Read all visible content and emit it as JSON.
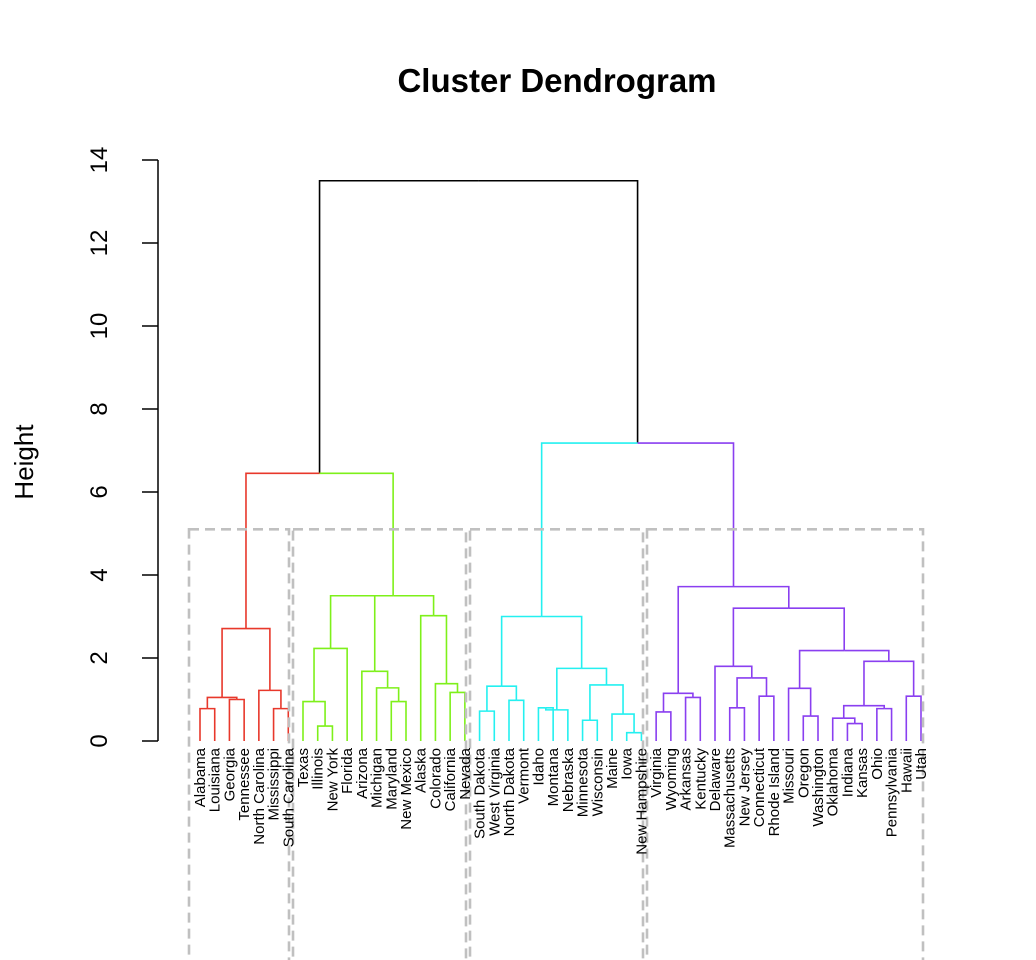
{
  "chart_data": {
    "type": "dendrogram",
    "title": "Cluster Dendrogram",
    "ylabel": "Height",
    "xlabel": "",
    "ylim": [
      0,
      14
    ],
    "yticks": [
      0,
      2,
      4,
      6,
      8,
      10,
      12,
      14
    ],
    "cut_height": 5.1,
    "leaves": [
      "Alabama",
      "Louisiana",
      "Georgia",
      "Tennessee",
      "North Carolina",
      "Mississippi",
      "South Carolina",
      "Texas",
      "Illinois",
      "New York",
      "Florida",
      "Arizona",
      "Michigan",
      "Maryland",
      "New Mexico",
      "Alaska",
      "Colorado",
      "California",
      "Nevada",
      "South Dakota",
      "West Virginia",
      "North Dakota",
      "Vermont",
      "Idaho",
      "Montana",
      "Nebraska",
      "Minnesota",
      "Wisconsin",
      "Maine",
      "Iowa",
      "New Hampshire",
      "Virginia",
      "Wyoming",
      "Arkansas",
      "Kentucky",
      "Delaware",
      "Massachusetts",
      "New Jersey",
      "Connecticut",
      "Rhode Island",
      "Missouri",
      "Oregon",
      "Washington",
      "Oklahoma",
      "Indiana",
      "Kansas",
      "Ohio",
      "Pennsylvania",
      "Hawaii",
      "Utah"
    ],
    "clusters": [
      {
        "name": "cluster-1",
        "first": 0,
        "last": 6,
        "color": "#e8382b"
      },
      {
        "name": "cluster-2",
        "first": 7,
        "last": 18,
        "color": "#7ef01a"
      },
      {
        "name": "cluster-3",
        "first": 19,
        "last": 30,
        "color": "#24f0f0"
      },
      {
        "name": "cluster-4",
        "first": 31,
        "last": 49,
        "color": "#8a3ff0"
      }
    ],
    "tree": [
      [
        [
          [
            [
              0,
              [
                1,
                [
                  2,
                  3,
                  1.0
                ],
                1.05
              ],
              0.78
            ],
            [
              [
                4,
                [
                  5,
                  6,
                  0.78
                ],
                1.22
              ],
              0,
              0
            ],
            2.71
          ],
          0,
          0
        ],
        [
          [
            [
              7,
              [
                8,
                0,
                0
              ],
              0.95
            ],
            [
              9,
              0,
              0
            ],
            2.23
          ],
          0,
          0
        ],
        6.45
      ],
      [
        0,
        0,
        0
      ],
      13.5
    ],
    "merges": [
      {
        "left": "Alabama",
        "right": "Louisiana",
        "height": 0.78
      },
      {
        "left": "Georgia",
        "right": "Tennessee",
        "height": 1.0
      },
      {
        "left": "Alabama+Louisiana",
        "right": "Georgia+Tennessee",
        "height": 1.05
      },
      {
        "left": "Mississippi",
        "right": "South Carolina",
        "height": 0.78
      },
      {
        "left": "North Carolina",
        "right": "Mississippi+South Carolina",
        "height": 1.22
      },
      {
        "left": "cluster-1-left",
        "right": "cluster-1-right",
        "height": 2.71
      },
      {
        "left": "Illinois",
        "right": "New York",
        "height": 0.36
      },
      {
        "left": "Texas",
        "right": "Illinois+New York",
        "height": 0.95
      },
      {
        "left": "Texas group",
        "right": "Florida",
        "height": 2.23
      },
      {
        "left": "Maryland",
        "right": "New Mexico",
        "height": 0.55
      },
      {
        "left": "Michigan",
        "right": "Maryland+New Mexico",
        "height": 0.95
      },
      {
        "left": "Arizona",
        "right": "Michigan group",
        "height": 1.28
      },
      {
        "left": "Arizona group",
        "right": "",
        "height": 1.68
      },
      {
        "left": "cluster-2-left",
        "right": "cluster-2-mid",
        "height": 3.5
      },
      {
        "left": "California",
        "right": "Nevada",
        "height": 1.17
      },
      {
        "left": "Colorado",
        "right": "California+Nevada",
        "height": 1.38
      },
      {
        "left": "Alaska",
        "right": "Colorado group",
        "height": 3.02
      },
      {
        "left": "cluster-1",
        "right": "cluster-2",
        "height": 6.45
      },
      {
        "left": "South Dakota",
        "right": "West Virginia",
        "height": 0.72
      },
      {
        "left": "North Dakota",
        "right": "Vermont",
        "height": 0.98
      },
      {
        "left": "South Dakota group",
        "right": "North Dakota group",
        "height": 1.32
      },
      {
        "left": "Idaho",
        "right": "Montana",
        "height": 0.8
      },
      {
        "left": "Idaho group",
        "right": "Nebraska",
        "height": 0.75
      },
      {
        "left": "Minnesota",
        "right": "Wisconsin",
        "height": 0.5
      },
      {
        "left": "Iowa",
        "right": "New Hampshire",
        "height": 0.2
      },
      {
        "left": "Maine",
        "right": "Iowa+New Hampshire",
        "height": 0.65
      },
      {
        "left": "Minnesota group",
        "right": "Maine group",
        "height": 1.35
      },
      {
        "left": "Idaho group",
        "right": "Minnesota group",
        "height": 1.75
      },
      {
        "left": "cluster-3-left",
        "right": "cluster-3-right",
        "height": 3.0
      },
      {
        "left": "Virginia",
        "right": "Wyoming",
        "height": 0.7
      },
      {
        "left": "Arkansas",
        "right": "Kentucky",
        "height": 1.05
      },
      {
        "left": "Virginia group",
        "right": "Arkansas group",
        "height": 1.15
      },
      {
        "left": "Massachusetts",
        "right": "New Jersey",
        "height": 0.8
      },
      {
        "left": "Connecticut",
        "right": "Rhode Island",
        "height": 1.08
      },
      {
        "left": "Massachusetts group",
        "right": "Connecticut group",
        "height": 1.52
      },
      {
        "left": "Delaware",
        "right": "Massachusetts group",
        "height": 1.8
      },
      {
        "left": "Missouri",
        "right": "Oregon",
        "height": 1.27
      },
      {
        "left": "Washington",
        "right": "",
        "height": 0.6
      },
      {
        "left": "Oklahoma",
        "right": "Indiana",
        "height": 0.55
      },
      {
        "left": "Kansas",
        "right": "",
        "height": 0.42
      },
      {
        "left": "Ohio",
        "right": "Pennsylvania",
        "height": 0.78
      },
      {
        "left": "Oklahoma group",
        "right": "Ohio group",
        "height": 0.85
      },
      {
        "left": "Hawaii",
        "right": "Utah",
        "height": 1.08
      },
      {
        "left": "Oklahoma group",
        "right": "Hawaii group",
        "height": 1.92
      },
      {
        "left": "Missouri group",
        "right": "Oklahoma group",
        "height": 2.18
      },
      {
        "left": "Delaware group",
        "right": "Missouri group",
        "height": 3.2
      },
      {
        "left": "Virginia group",
        "right": "Delaware group",
        "height": 3.72
      },
      {
        "left": "cluster-3",
        "right": "cluster-4",
        "height": 7.18
      },
      {
        "left": "cluster-1+2",
        "right": "cluster-3+4",
        "height": 13.5
      }
    ],
    "colors": {
      "cut_box": "#c0c0c0",
      "top_link": "#000000"
    }
  }
}
